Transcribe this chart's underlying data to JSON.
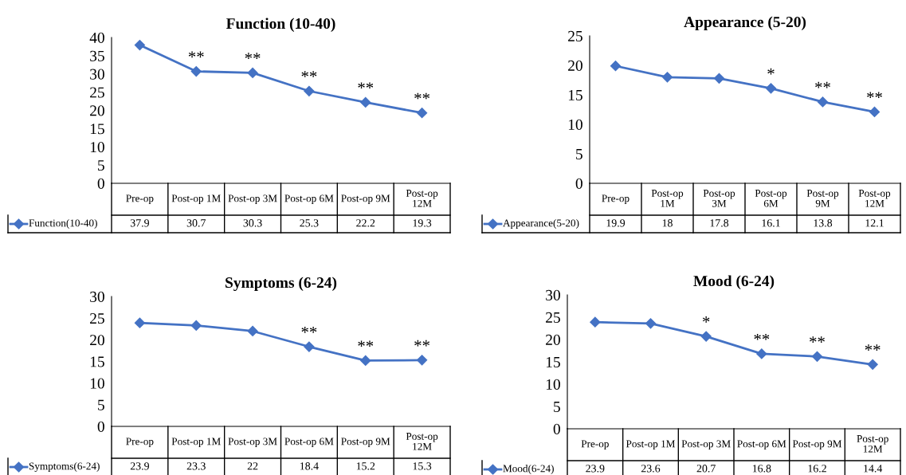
{
  "chart_data": [
    {
      "type": "line",
      "title": "Function (10-40)",
      "categories": [
        "Pre-op",
        "Post-op 1M",
        "Post-op 3M",
        "Post-op 6M",
        "Post-op 9M",
        "Post-op 12M"
      ],
      "series": [
        {
          "name": "Function(10-40)",
          "color": "#4472c4",
          "values": [
            37.9,
            30.7,
            30.3,
            25.3,
            22.2,
            19.3
          ]
        }
      ],
      "ylim": [
        0,
        40
      ],
      "yticks": [
        0,
        5,
        10,
        15,
        20,
        25,
        30,
        35,
        40
      ],
      "marker": "diamond",
      "data_labels": true,
      "legend": "bottom",
      "grid": false,
      "annotations": [
        {
          "text": "**",
          "x": "Post-op 1M",
          "y": 30.7
        },
        {
          "text": "**",
          "x": "Post-op 3M",
          "y": 30.3
        },
        {
          "text": "**",
          "x": "Post-op 6M",
          "y": 25.3
        },
        {
          "text": "**",
          "x": "Post-op 9M",
          "y": 22.2
        },
        {
          "text": "**",
          "x": "Post-op 12M",
          "y": 19.3
        }
      ]
    },
    {
      "type": "line",
      "title": "Appearance (5-20)",
      "categories": [
        "Pre-op",
        "Post-op 1M",
        "Post-op 3M",
        "Post-op 6M",
        "Post-op 9M",
        "Post-op 12M"
      ],
      "series": [
        {
          "name": "Appearance(5-20)",
          "color": "#4472c4",
          "values": [
            19.9,
            18,
            17.8,
            16.1,
            13.8,
            12.1
          ]
        }
      ],
      "ylim": [
        0,
        25
      ],
      "yticks": [
        0,
        5,
        10,
        15,
        20,
        25
      ],
      "marker": "diamond",
      "data_labels": true,
      "legend": "bottom",
      "grid": false,
      "annotations": [
        {
          "text": "*",
          "x": "Post-op 6M",
          "y": 16.1
        },
        {
          "text": "**",
          "x": "Post-op 9M",
          "y": 13.8
        },
        {
          "text": "**",
          "x": "Post-op 12M",
          "y": 12.1
        }
      ]
    },
    {
      "type": "line",
      "title": "Symptoms (6-24)",
      "categories": [
        "Pre-op",
        "Post-op 1M",
        "Post-op 3M",
        "Post-op 6M",
        "Post-op 9M",
        "Post-op 12M"
      ],
      "series": [
        {
          "name": "Symptoms(6-24)",
          "color": "#4472c4",
          "values": [
            23.9,
            23.3,
            22,
            18.4,
            15.2,
            15.3
          ]
        }
      ],
      "ylim": [
        0,
        30
      ],
      "yticks": [
        0,
        5,
        10,
        15,
        20,
        25,
        30
      ],
      "marker": "diamond",
      "data_labels": true,
      "legend": "bottom",
      "grid": false,
      "annotations": [
        {
          "text": "**",
          "x": "Post-op 6M",
          "y": 18.4
        },
        {
          "text": "**",
          "x": "Post-op 9M",
          "y": 15.2
        },
        {
          "text": "**",
          "x": "Post-op 12M",
          "y": 15.3
        }
      ]
    },
    {
      "type": "line",
      "title": "Mood (6-24)",
      "categories": [
        "Pre-op",
        "Post-op 1M",
        "Post-op 3M",
        "Post-op 6M",
        "Post-op 9M",
        "Post-op 12M"
      ],
      "series": [
        {
          "name": "Mood(6-24)",
          "color": "#4472c4",
          "values": [
            23.9,
            23.6,
            20.7,
            16.8,
            16.2,
            14.4
          ]
        }
      ],
      "ylim": [
        0,
        30
      ],
      "yticks": [
        0,
        5,
        10,
        15,
        20,
        25,
        30
      ],
      "marker": "diamond",
      "data_labels": true,
      "legend": "bottom",
      "grid": false,
      "annotations": [
        {
          "text": "*",
          "x": "Post-op 3M",
          "y": 20.7
        },
        {
          "text": "**",
          "x": "Post-op 6M",
          "y": 16.8
        },
        {
          "text": "**",
          "x": "Post-op 9M",
          "y": 16.2
        },
        {
          "text": "**",
          "x": "Post-op 12M",
          "y": 14.4
        }
      ]
    }
  ]
}
